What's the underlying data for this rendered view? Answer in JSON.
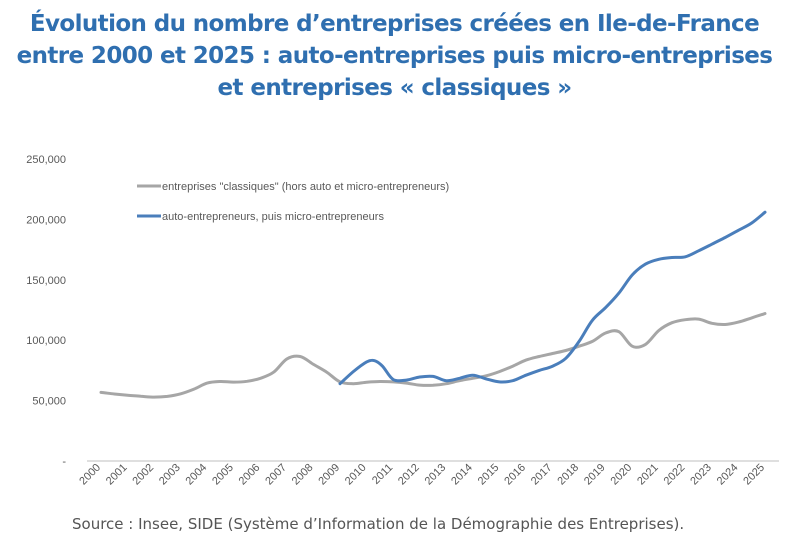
{
  "title_lines": [
    "Évolution du nombre d’entreprises créées en Ile-de-France",
    "entre 2000 et 2025 : auto-entreprises puis micro-entreprises",
    "et entreprises « classiques »"
  ],
  "source": "Source : Insee, SIDE (Système d’Information de la Démographie des Entreprises).",
  "colors": {
    "title": "#2f6fb0",
    "classiques": "#a6a6a6",
    "auto": "#4a7ebb",
    "axis": "#bfbfbf",
    "text": "#595959"
  },
  "chart_data": {
    "type": "line",
    "title": "",
    "xlabel": "",
    "ylabel": "",
    "ylim": [
      0,
      250000
    ],
    "yticks": [
      0,
      50000,
      100000,
      150000,
      200000,
      250000
    ],
    "ytick_labels": [
      "-",
      "50,000",
      "100,000",
      "150,000",
      "200,000",
      "250,000"
    ],
    "xlim": [
      2000,
      2025
    ],
    "xtick_labels": [
      "2000",
      "2001",
      "2002",
      "2003",
      "2004",
      "2005",
      "2006",
      "2007",
      "2008",
      "2009",
      "2010",
      "2011",
      "2012",
      "2013",
      "2014",
      "2015",
      "2016",
      "2017",
      "2018",
      "2019",
      "2020",
      "2021",
      "2022",
      "2023",
      "2024",
      "2025"
    ],
    "grid": false,
    "legend_position": "top-left",
    "series": [
      {
        "name": "entreprises \"classiques\" (hors auto et micro-entrepreneurs)",
        "color": "#a6a6a6",
        "x": [
          2000,
          2000.5,
          2001,
          2001.5,
          2002,
          2002.5,
          2003,
          2003.5,
          2004,
          2004.5,
          2005,
          2005.5,
          2006,
          2006.5,
          2007,
          2007.5,
          2008,
          2008.5,
          2009,
          2009.5,
          2010,
          2010.5,
          2011,
          2011.5,
          2012,
          2012.5,
          2013,
          2013.5,
          2014,
          2014.5,
          2015,
          2015.5,
          2016,
          2016.5,
          2017,
          2017.5,
          2018,
          2018.5,
          2019,
          2019.5,
          2020,
          2020.5,
          2021,
          2021.5,
          2022,
          2022.5,
          2023,
          2023.5,
          2024,
          2024.5,
          2025
        ],
        "values": [
          56800,
          55500,
          54400,
          53600,
          52900,
          53500,
          55600,
          59500,
          64500,
          65800,
          65300,
          66000,
          68500,
          73500,
          84500,
          86500,
          80000,
          73500,
          65500,
          64000,
          65200,
          65800,
          65500,
          64500,
          62800,
          62700,
          64000,
          66500,
          68500,
          70500,
          74000,
          78500,
          83500,
          86500,
          89000,
          91500,
          95000,
          99000,
          106000,
          107000,
          95000,
          96500,
          108000,
          114500,
          117000,
          117500,
          114000,
          113000,
          115000,
          118500,
          122000
        ]
      },
      {
        "name": "auto-entrepreneurs, puis  micro-entrepreneurs",
        "color": "#4a7ebb",
        "x": [
          2009,
          2009.5,
          2010,
          2010.3,
          2010.6,
          2011,
          2011.5,
          2012,
          2012.5,
          2013,
          2013.5,
          2014,
          2014.5,
          2015,
          2015.5,
          2016,
          2016.5,
          2017,
          2017.5,
          2018,
          2018.5,
          2019,
          2019.5,
          2020,
          2020.5,
          2021,
          2021.5,
          2022,
          2022.5,
          2023,
          2023.5,
          2024,
          2024.5,
          2025
        ],
        "values": [
          64000,
          74000,
          82000,
          83000,
          78500,
          67500,
          67000,
          69500,
          70000,
          66500,
          68500,
          71000,
          68000,
          65500,
          66500,
          71000,
          75000,
          78500,
          85000,
          99000,
          116500,
          127000,
          139000,
          154000,
          163000,
          167000,
          168500,
          169000,
          174000,
          179500,
          185000,
          191000,
          197000,
          206000
        ]
      }
    ]
  }
}
